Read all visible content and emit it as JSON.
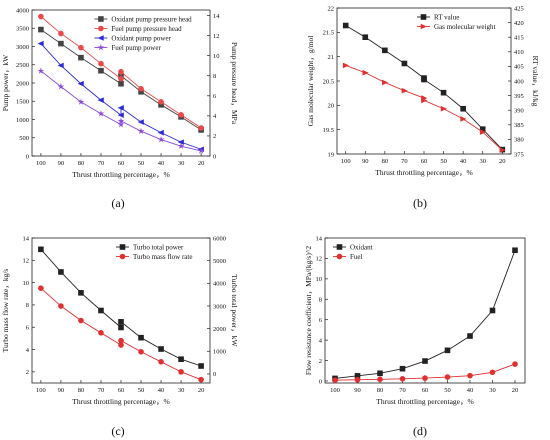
{
  "figure": {
    "panel_labels": [
      "(a)",
      "(b)",
      "(c)",
      "(d)"
    ]
  },
  "chart_data": [
    {
      "id": "a",
      "type": "line",
      "x": [
        100,
        90,
        80,
        70,
        60,
        50,
        40,
        30,
        20
      ],
      "xlabel": "Thrust throttling percentage，%",
      "xticks": [
        100,
        90,
        80,
        70,
        60,
        50,
        40,
        30,
        20
      ],
      "ylabel_left": "Pump power，kW",
      "yticks_left": [
        0,
        500,
        1000,
        1500,
        2000,
        2500,
        3000,
        3500,
        4000
      ],
      "ylim_left": [
        0,
        4000
      ],
      "ylabel_right": "Pump pressure head，MPa",
      "yticks_right": [
        0,
        2,
        4,
        6,
        8,
        10,
        12,
        14
      ],
      "ylim_right": [
        0,
        14.55
      ],
      "legend": "top-right",
      "series": [
        {
          "name": "Oxidant pump pressure head",
          "axis": "right",
          "color": "#444444",
          "marker": "square",
          "points": [
            [
              100,
              12.6
            ],
            [
              90,
              11.2
            ],
            [
              80,
              9.8
            ],
            [
              70,
              8.5
            ],
            [
              60,
              7.2
            ],
            [
              60,
              8.0
            ],
            [
              50,
              6.4
            ],
            [
              40,
              5.1
            ],
            [
              30,
              3.9
            ],
            [
              20,
              2.6
            ]
          ]
        },
        {
          "name": "Fuel pump pressure head",
          "axis": "right",
          "color": "#e84a4a",
          "marker": "circle",
          "points": [
            [
              100,
              13.9
            ],
            [
              90,
              12.2
            ],
            [
              80,
              10.8
            ],
            [
              70,
              9.2
            ],
            [
              60,
              7.7
            ],
            [
              60,
              8.4
            ],
            [
              50,
              6.7
            ],
            [
              40,
              5.4
            ],
            [
              30,
              4.1
            ],
            [
              20,
              2.8
            ]
          ]
        },
        {
          "name": "Oxidant pump power",
          "axis": "left",
          "color": "#2b2bd6",
          "marker": "triangle-left",
          "points": [
            [
              100,
              3080
            ],
            [
              90,
              2480
            ],
            [
              80,
              1980
            ],
            [
              70,
              1530
            ],
            [
              60,
              1120
            ],
            [
              60,
              1320
            ],
            [
              50,
              930
            ],
            [
              40,
              640
            ],
            [
              30,
              380
            ],
            [
              20,
              185
            ]
          ]
        },
        {
          "name": "Fuel pump power",
          "axis": "left",
          "color": "#8a4ad6",
          "marker": "star",
          "points": [
            [
              100,
              2330
            ],
            [
              90,
              1900
            ],
            [
              80,
              1480
            ],
            [
              70,
              1160
            ],
            [
              60,
              860
            ],
            [
              60,
              960
            ],
            [
              50,
              680
            ],
            [
              40,
              450
            ],
            [
              30,
              270
            ],
            [
              20,
              140
            ]
          ]
        }
      ]
    },
    {
      "id": "b",
      "type": "line",
      "x": [
        100,
        90,
        80,
        70,
        60,
        50,
        40,
        30,
        20
      ],
      "xlabel": "Thrust throttling percentage，%",
      "xticks": [
        100,
        90,
        80,
        70,
        60,
        50,
        40,
        30,
        20
      ],
      "ylabel_left": "Gas molecular weight，g/mol",
      "yticks_left": [
        19.0,
        19.5,
        20.0,
        20.5,
        21.0,
        21.5,
        22.0
      ],
      "ylim_left": [
        19.0,
        22.0
      ],
      "ylabel_right": "RT value，kJ/kg",
      "yticks_right": [
        375,
        380,
        385,
        390,
        395,
        400,
        405,
        410,
        415,
        420,
        425
      ],
      "ylim_right": [
        375,
        425
      ],
      "legend": "top-right",
      "series": [
        {
          "name": "RT value",
          "axis": "right",
          "color": "#222222",
          "marker": "square",
          "points": [
            [
              100,
              419
            ],
            [
              90,
              415
            ],
            [
              80,
              410.5
            ],
            [
              70,
              406
            ],
            [
              60,
              401
            ],
            [
              60,
              400.5
            ],
            [
              50,
              396
            ],
            [
              40,
              390.5
            ],
            [
              30,
              383.5
            ],
            [
              20,
              376.5
            ]
          ]
        },
        {
          "name": "Gas molecular weight",
          "axis": "left",
          "color": "#e03030",
          "marker": "triangle-right",
          "points": [
            [
              100,
              20.82
            ],
            [
              90,
              20.67
            ],
            [
              80,
              20.47
            ],
            [
              70,
              20.3
            ],
            [
              60,
              20.15
            ],
            [
              60,
              20.1
            ],
            [
              50,
              19.93
            ],
            [
              40,
              19.72
            ],
            [
              30,
              19.45
            ],
            [
              20,
              19.08
            ]
          ]
        }
      ]
    },
    {
      "id": "c",
      "type": "line",
      "x": [
        100,
        90,
        80,
        70,
        60,
        50,
        40,
        30,
        20
      ],
      "xlabel": "Thrust throttling percentage，%",
      "xticks": [
        100,
        90,
        80,
        70,
        60,
        50,
        40,
        30,
        20
      ],
      "ylabel_left": "Turbo mass flow rate，kg/s",
      "yticks_left": [
        2,
        4,
        6,
        8,
        10,
        12,
        14
      ],
      "ylim_left": [
        1.0,
        14.0
      ],
      "ylabel_right": "Turbo total power，kW",
      "yticks_right": [
        0,
        1000,
        2000,
        3000,
        4000,
        5000,
        6000
      ],
      "ylim_right": [
        -400,
        6000
      ],
      "legend": "top-right",
      "series": [
        {
          "name": "Turbo total power",
          "axis": "right",
          "color": "#222222",
          "marker": "square",
          "points": [
            [
              100,
              5500
            ],
            [
              90,
              4500
            ],
            [
              80,
              3580
            ],
            [
              70,
              2800
            ],
            [
              60,
              2050
            ],
            [
              60,
              2300
            ],
            [
              50,
              1600
            ],
            [
              40,
              1100
            ],
            [
              30,
              650
            ],
            [
              20,
              350
            ]
          ]
        },
        {
          "name": "Turbo mass flow rate",
          "axis": "left",
          "color": "#e03030",
          "marker": "circle",
          "points": [
            [
              100,
              9.5
            ],
            [
              90,
              7.9
            ],
            [
              80,
              6.6
            ],
            [
              70,
              5.5
            ],
            [
              60,
              4.4
            ],
            [
              60,
              4.8
            ],
            [
              50,
              3.8
            ],
            [
              40,
              2.9
            ],
            [
              30,
              2.0
            ],
            [
              20,
              1.3
            ]
          ]
        }
      ]
    },
    {
      "id": "d",
      "type": "line",
      "x": [
        100,
        90,
        80,
        70,
        60,
        50,
        40,
        30,
        20
      ],
      "xlabel": "Thrust throttling percentage，%",
      "xticks": [
        100,
        90,
        80,
        70,
        60,
        50,
        40,
        30,
        20
      ],
      "ylabel_left": "Flow resistance coefficient，MPa/(kg/s)^2",
      "yticks_left": [
        0,
        2,
        4,
        6,
        8,
        10,
        12,
        14
      ],
      "ylim_left": [
        -0.2,
        14
      ],
      "legend": "top-left",
      "series": [
        {
          "name": "Oxidant",
          "axis": "left",
          "color": "#222222",
          "marker": "square",
          "points": [
            [
              100,
              0.25
            ],
            [
              90,
              0.5
            ],
            [
              80,
              0.75
            ],
            [
              70,
              1.2
            ],
            [
              60,
              1.95
            ],
            [
              50,
              3.0
            ],
            [
              40,
              4.4
            ],
            [
              30,
              6.9
            ],
            [
              20,
              12.8
            ]
          ]
        },
        {
          "name": "Fuel",
          "axis": "left",
          "color": "#e03030",
          "marker": "circle",
          "points": [
            [
              100,
              0.08
            ],
            [
              90,
              0.12
            ],
            [
              80,
              0.16
            ],
            [
              70,
              0.21
            ],
            [
              60,
              0.28
            ],
            [
              50,
              0.38
            ],
            [
              40,
              0.52
            ],
            [
              30,
              0.85
            ],
            [
              20,
              1.65
            ]
          ]
        }
      ]
    }
  ]
}
